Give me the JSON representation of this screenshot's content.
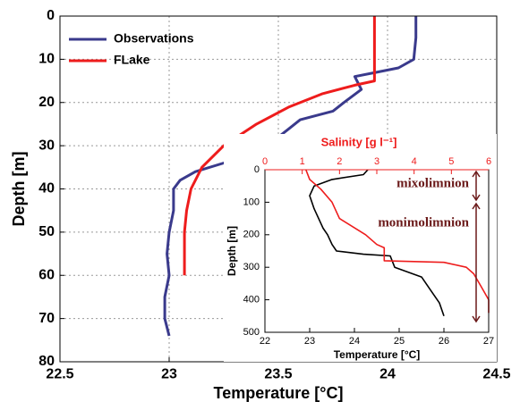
{
  "chart_data": [
    {
      "type": "line",
      "xlabel": "Temperature [°C]",
      "ylabel": "Depth [m]",
      "xlim": [
        22.5,
        24.5
      ],
      "xticks": [
        22.5,
        23,
        23.5,
        24,
        24.5
      ],
      "ylim": [
        0,
        80
      ],
      "yticks": [
        0,
        10,
        20,
        30,
        40,
        50,
        60,
        70,
        80
      ],
      "y_inverted": true,
      "grid": true,
      "legend": "upper left",
      "series": [
        {
          "name": "Observations",
          "color": "#3a3a8c",
          "x": [
            24.13,
            24.13,
            24.12,
            24.05,
            23.95,
            23.85,
            23.88,
            23.8,
            23.75,
            23.6,
            23.55,
            23.5,
            23.45,
            23.35,
            23.25,
            23.12,
            23.05,
            23.02,
            23.02,
            23.0,
            22.99,
            23.0,
            22.98,
            22.98,
            23.0
          ],
          "values": [
            0,
            5,
            10,
            12,
            13,
            14,
            17,
            20,
            22,
            24,
            26,
            28,
            30,
            32,
            34,
            36,
            38,
            40,
            45,
            50,
            55,
            60,
            65,
            70,
            74
          ]
        },
        {
          "name": "FLake",
          "color": "#ee1c1c",
          "x": [
            23.94,
            23.94,
            23.85,
            23.7,
            23.55,
            23.4,
            23.25,
            23.15,
            23.1,
            23.08,
            23.07,
            23.07,
            23.07
          ],
          "values": [
            0,
            15,
            16,
            18,
            21,
            25,
            30,
            35,
            40,
            45,
            50,
            55,
            60
          ]
        }
      ]
    },
    {
      "type": "line",
      "xlabel": "Temperature [°C]",
      "ylabel": "Depth [m]",
      "x2label": "Salinity [g l⁻¹]",
      "xlim": [
        22,
        27
      ],
      "xticks": [
        22,
        23,
        24,
        25,
        26,
        27
      ],
      "x2lim": [
        0,
        6
      ],
      "x2ticks": [
        0,
        1,
        2,
        3,
        4,
        5,
        6
      ],
      "x2color": "#ee1c1c",
      "ylim": [
        0,
        500
      ],
      "yticks": [
        0,
        100,
        200,
        300,
        400,
        500
      ],
      "y_inverted": true,
      "grid": false,
      "annotations": [
        "mixolimnion",
        "monimolimnion"
      ],
      "annotation_color": "#6b1a1a",
      "series": [
        {
          "color": "#000000",
          "x": [
            24.3,
            24.2,
            23.5,
            23.1,
            23.0,
            23.1,
            23.3,
            23.4,
            23.5,
            23.6,
            24.2,
            24.8,
            24.9,
            25.5,
            25.7,
            25.9,
            26.0
          ],
          "values": [
            0,
            15,
            30,
            50,
            80,
            120,
            180,
            200,
            230,
            250,
            260,
            265,
            300,
            330,
            370,
            410,
            450
          ]
        },
        {
          "color": "#ee1c1c",
          "axis": "x2",
          "x": [
            1.1,
            1.2,
            1.5,
            1.8,
            2.0,
            2.7,
            3.0,
            3.2,
            3.2,
            4.8,
            5.4,
            5.6,
            5.8,
            6.0,
            6.0
          ],
          "values": [
            0,
            30,
            60,
            100,
            150,
            200,
            230,
            240,
            280,
            285,
            300,
            320,
            360,
            400,
            440
          ]
        }
      ]
    }
  ]
}
